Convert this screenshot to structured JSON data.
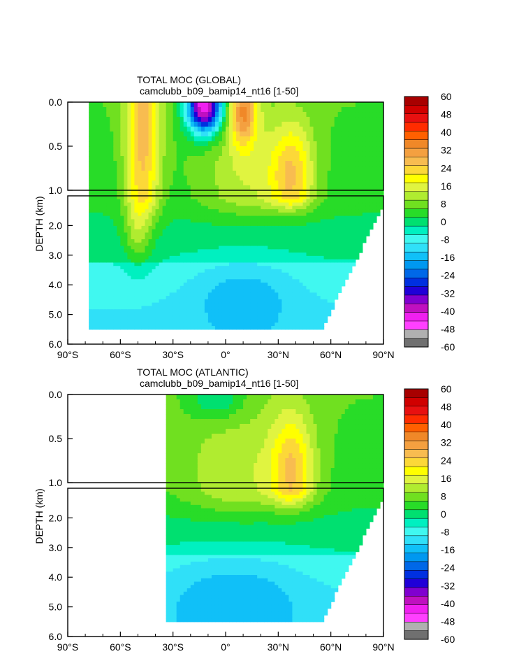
{
  "colorbar_levels": [
    60,
    48,
    40,
    32,
    24,
    16,
    8,
    0,
    -8,
    -16,
    -24,
    -32,
    -40,
    -48,
    -60
  ],
  "palette": [
    "#a80000",
    "#d00000",
    "#e81010",
    "#ff2c00",
    "#ff6000",
    "#f08828",
    "#f4a040",
    "#f8bc50",
    "#fcd838",
    "#ffff00",
    "#e0f440",
    "#b0ec30",
    "#70e020",
    "#28dc28",
    "#00e070",
    "#00f0c0",
    "#40f8f0",
    "#30e0f8",
    "#10c0f8",
    "#0098f0",
    "#0068e8",
    "#0030e0",
    "#2000d8",
    "#8000d0",
    "#c010c0",
    "#f020f0",
    "#ff40ff",
    "#b0b0b0",
    "#707070"
  ],
  "chart_data": [
    {
      "type": "heatmap",
      "title": "TOTAL MOC (GLOBAL)",
      "subtitle": "camclubb_b09_bamip14_nt16 [1-50]",
      "ylabel": "DEPTH (km)",
      "x_ticks": [
        "90°S",
        "60°S",
        "30°S",
        "0°",
        "30°N",
        "60°N",
        "90°N"
      ],
      "y_ticks_upper": [
        "0.0",
        "0.5",
        "1.0"
      ],
      "y_ticks_lower": [
        "2.0",
        "3.0",
        "4.0",
        "5.0",
        "6.0"
      ],
      "xlim": [
        -90,
        90
      ],
      "ylim": [
        6,
        0
      ],
      "depth_break_km": 1.0,
      "ocean_lat_range": [
        -78,
        90
      ],
      "bottom_depth_km": 5.5,
      "background_value": 4,
      "features": [
        {
          "name": "southern-ocean-cell",
          "lat": -47,
          "depth": 0.3,
          "value": 26,
          "lat_width": 10,
          "depth_width": 1.4
        },
        {
          "name": "deep-southern-cell",
          "lat": -50,
          "depth": 2.2,
          "value": 14,
          "lat_width": 8,
          "depth_width": 1.2
        },
        {
          "name": "tropical-negative-cell",
          "lat": -12,
          "depth": 0.05,
          "value": -50,
          "lat_width": 10,
          "depth_width": 0.3
        },
        {
          "name": "tropical-positive-cell",
          "lat": 10,
          "depth": 0.1,
          "value": 30,
          "lat_width": 8,
          "depth_width": 0.4
        },
        {
          "name": "north-atlantic-cell",
          "lat": 38,
          "depth": 0.85,
          "value": 22,
          "lat_width": 12,
          "depth_width": 0.6
        },
        {
          "name": "upper-cell-broad",
          "lat": 15,
          "depth": 0.9,
          "value": 14,
          "lat_width": 30,
          "depth_width": 0.8
        },
        {
          "name": "abyssal-cell",
          "lat": 10,
          "depth": 4.3,
          "value": -4,
          "lat_width": 30,
          "depth_width": 1.2
        }
      ]
    },
    {
      "type": "heatmap",
      "title": "TOTAL MOC (ATLANTIC)",
      "subtitle": "camclubb_b09_bamip14_nt16 [1-50]",
      "ylabel": "DEPTH (km)",
      "x_ticks": [
        "90°S",
        "60°S",
        "30°S",
        "0°",
        "30°N",
        "60°N",
        "90°N"
      ],
      "y_ticks_upper": [
        "0.0",
        "0.5",
        "1.0"
      ],
      "y_ticks_lower": [
        "2.0",
        "3.0",
        "4.0",
        "5.0",
        "6.0"
      ],
      "xlim": [
        -90,
        90
      ],
      "ylim": [
        6,
        0
      ],
      "depth_break_km": 1.0,
      "ocean_lat_range": [
        -33,
        90
      ],
      "bottom_depth_km": 5.5,
      "background_value": 4,
      "features": [
        {
          "name": "surface-negative-cell",
          "lat": -5,
          "depth": 0.05,
          "value": -6,
          "lat_width": 15,
          "depth_width": 0.25
        },
        {
          "name": "amoc-cell",
          "lat": 38,
          "depth": 0.9,
          "value": 22,
          "lat_width": 12,
          "depth_width": 0.7
        },
        {
          "name": "upper-cell-broad",
          "lat": 10,
          "depth": 1.0,
          "value": 14,
          "lat_width": 38,
          "depth_width": 0.9
        },
        {
          "name": "abyssal-cell",
          "lat": 5,
          "depth": 4.5,
          "value": -4,
          "lat_width": 40,
          "depth_width": 1.3
        }
      ]
    }
  ]
}
